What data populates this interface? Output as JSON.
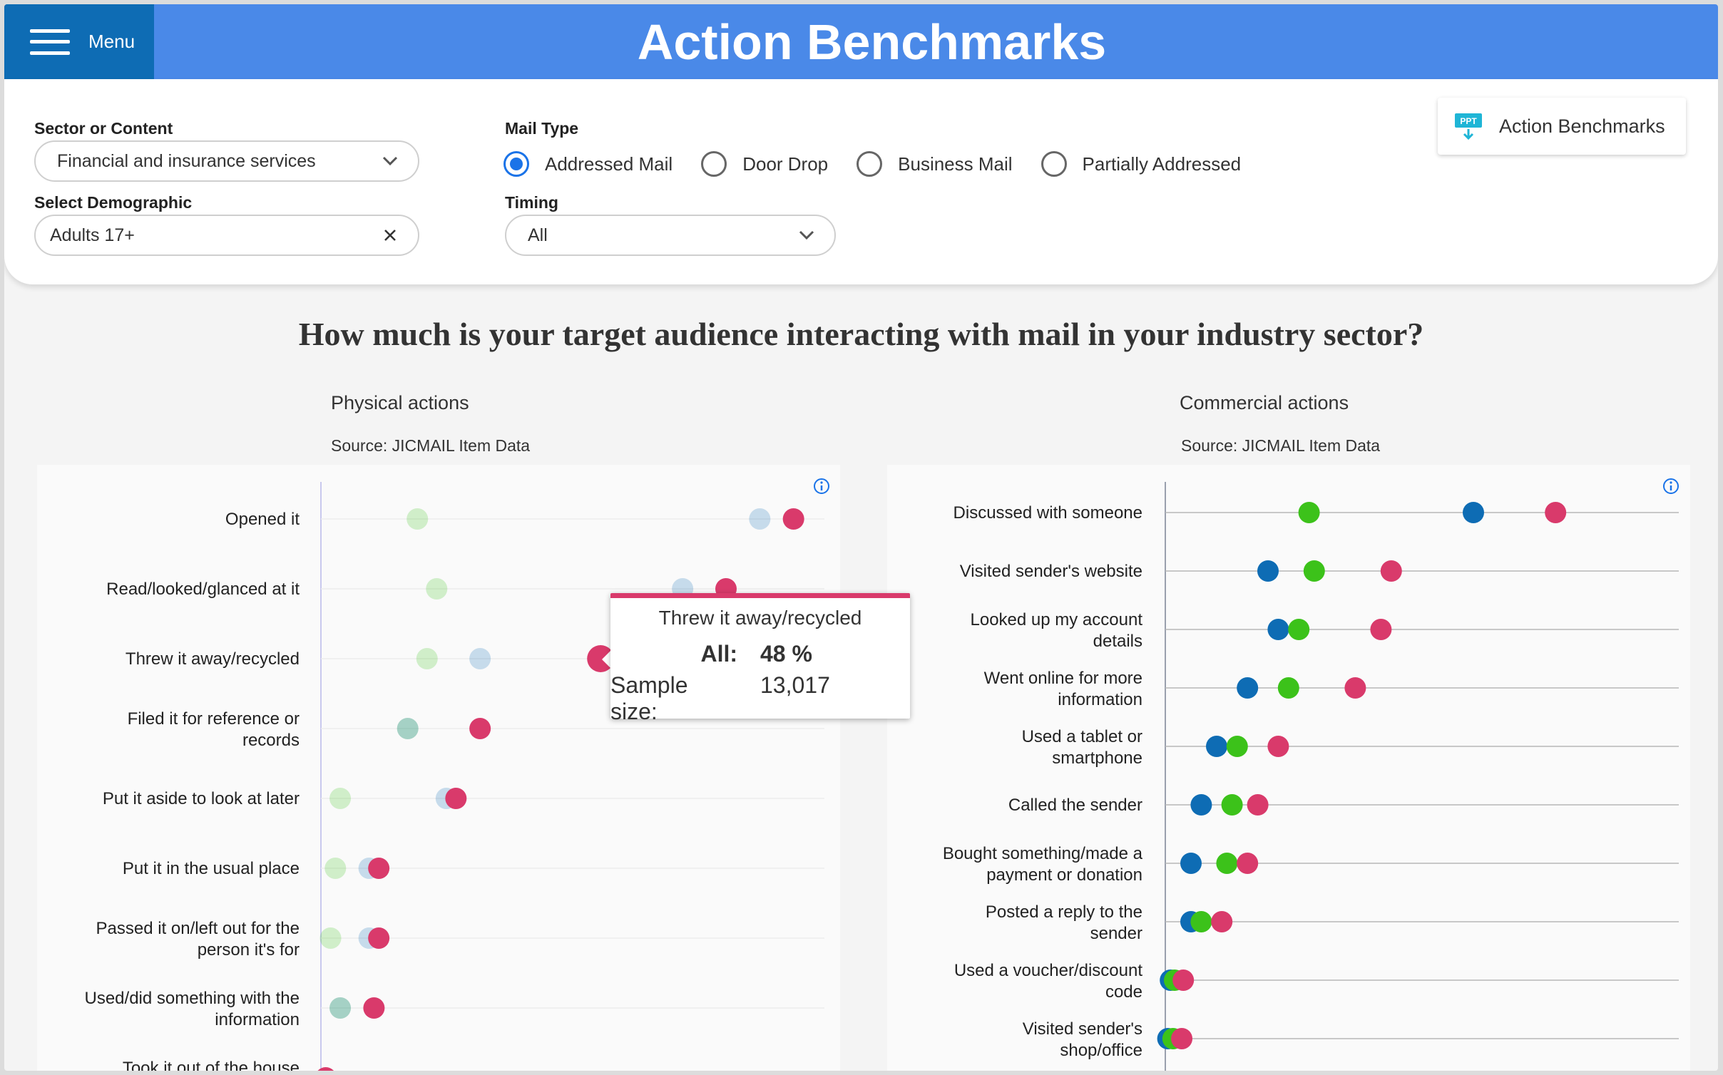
{
  "header": {
    "menu_label": "Menu",
    "title": "Action Benchmarks"
  },
  "filters": {
    "sector": {
      "label": "Sector or Content",
      "value": "Financial and insurance services"
    },
    "demographic": {
      "label": "Select Demographic",
      "value": "Adults 17+"
    },
    "mail_type": {
      "label": "Mail Type",
      "options": [
        "Addressed Mail",
        "Door Drop",
        "Business Mail",
        "Partially Addressed"
      ],
      "selected": "Addressed Mail"
    },
    "timing": {
      "label": "Timing",
      "value": "All"
    },
    "ppt_button": {
      "label": "Action Benchmarks",
      "icon_text": "PPT"
    }
  },
  "main": {
    "question": "How much is your target audience interacting with mail in your industry sector?"
  },
  "colors": {
    "blue": "#0e6cb4",
    "green": "#3cc21a",
    "pink": "#d93a6b"
  },
  "chart_data": [
    {
      "type": "scatter",
      "title": "Physical actions",
      "subtitle": "Source: JICMAIL Item Data",
      "categories": [
        "Opened it",
        "Read/looked/glanced at it",
        "Threw it away/recycled",
        "Filed it for reference or records",
        "Put it aside to look at later",
        "Put it in the usual place",
        "Passed it on/left out for the person it's for",
        "Used/did something with the information",
        "Took it out of the house (e.g. to"
      ],
      "series": [
        {
          "color": "#3cc21a",
          "values": [
            20,
            24,
            22,
            18,
            4,
            3,
            2,
            4,
            null
          ]
        },
        {
          "color": "#0e6cb4",
          "values": [
            91,
            75,
            33,
            18,
            26,
            10,
            10,
            4,
            null
          ]
        },
        {
          "color": "#d93a6b",
          "values": [
            98,
            84,
            58,
            33,
            28,
            12,
            12,
            11,
            1
          ]
        }
      ],
      "xlim": [
        0,
        105
      ],
      "tooltip": {
        "title": "Threw it away/recycled",
        "label": "All:",
        "value": "48 %",
        "sample_label": "Sample size:",
        "sample_value": "13,017"
      }
    },
    {
      "type": "scatter",
      "title": "Commercial actions",
      "subtitle": "Source: JICMAIL Item Data",
      "categories": [
        "Discussed with someone",
        "Visited sender's website",
        "Looked up my account details",
        "Went online for more information",
        "Used a tablet or smartphone",
        "Called the sender",
        "Bought something/made a payment or donation",
        "Posted a reply to the sender",
        "Used a voucher/discount code",
        "Visited sender's shop/office"
      ],
      "series": [
        {
          "color": "#0e6cb4",
          "values": [
            60,
            20,
            22,
            16,
            10,
            7,
            5,
            5,
            1,
            0.5
          ]
        },
        {
          "color": "#3cc21a",
          "values": [
            28,
            29,
            26,
            24,
            14,
            13,
            12,
            7,
            1.8,
            1.5
          ]
        },
        {
          "color": "#d93a6b",
          "values": [
            76,
            44,
            42,
            37,
            22,
            18,
            16,
            11,
            3.5,
            3.2
          ]
        }
      ],
      "xlim": [
        0,
        100
      ]
    }
  ]
}
